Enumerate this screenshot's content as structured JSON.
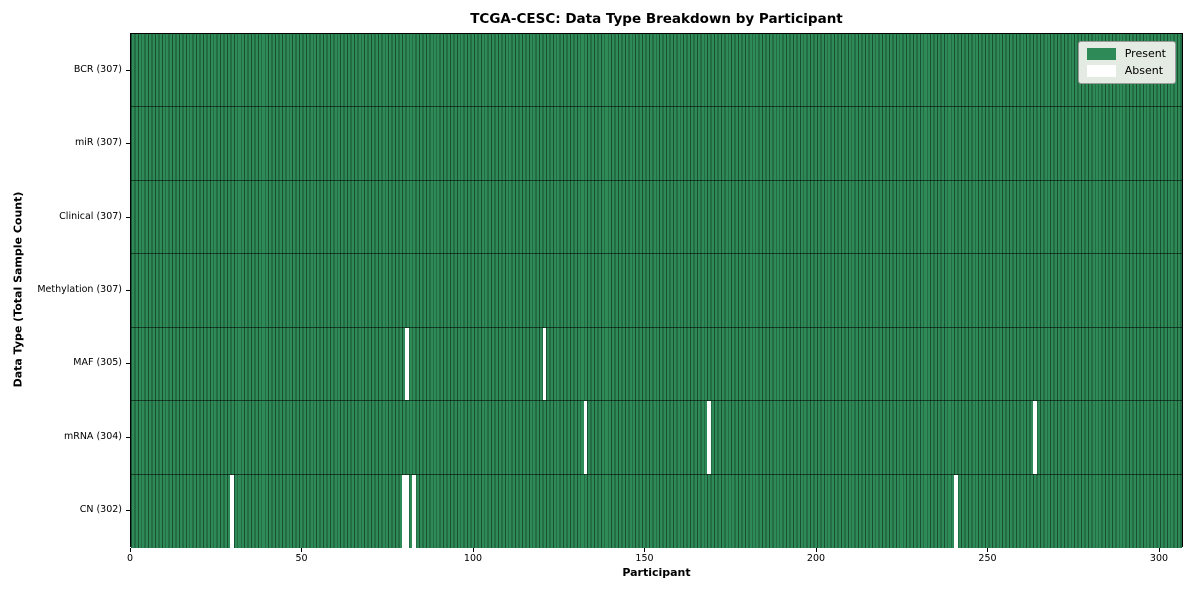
{
  "figure": {
    "title": "TCGA-CESC: Data Type Breakdown by Participant",
    "xlabel": "Participant",
    "ylabel": "Data Type (Total Sample Count)"
  },
  "legend": {
    "items": [
      {
        "label": "Present",
        "color": "#2e8b57"
      },
      {
        "label": "Absent",
        "color": "#ffffff"
      }
    ],
    "position": "upper right"
  },
  "chart_data": {
    "type": "heatmap",
    "title": "TCGA-CESC: Data Type Breakdown by Participant",
    "xlabel": "Participant",
    "ylabel": "Data Type (Total Sample Count)",
    "x_ticks": [
      0,
      50,
      100,
      150,
      200,
      250,
      300
    ],
    "xlim": [
      0,
      307
    ],
    "n_participants": 307,
    "grid": false,
    "colors": {
      "present": "#2e8b57",
      "absent": "#ffffff"
    },
    "rows": [
      {
        "label": "BCR (307)",
        "data_type": "BCR",
        "count": 307,
        "absent_participants": []
      },
      {
        "label": "miR (307)",
        "data_type": "miR",
        "count": 307,
        "absent_participants": []
      },
      {
        "label": "Clinical (307)",
        "data_type": "Clinical",
        "count": 307,
        "absent_participants": []
      },
      {
        "label": "Methylation (307)",
        "data_type": "Methylation",
        "count": 307,
        "absent_participants": []
      },
      {
        "label": "MAF (305)",
        "data_type": "MAF",
        "count": 305,
        "absent_participants": [
          80,
          120
        ]
      },
      {
        "label": "mRNA (304)",
        "data_type": "mRNA",
        "count": 304,
        "absent_participants": [
          132,
          168,
          263
        ]
      },
      {
        "label": "CN (302)",
        "data_type": "CN",
        "count": 302,
        "absent_participants": [
          29,
          79,
          80,
          82,
          240
        ]
      }
    ]
  }
}
